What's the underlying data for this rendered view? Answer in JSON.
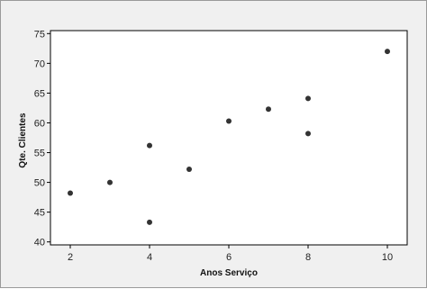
{
  "chart_data": {
    "type": "scatter",
    "xlabel": "Anos Serviço",
    "ylabel": "Qte. Clientes",
    "xlim": [
      1.5,
      10.5
    ],
    "ylim": [
      39.5,
      75.5
    ],
    "xticks": [
      2,
      4,
      6,
      8,
      10
    ],
    "yticks": [
      40,
      45,
      50,
      55,
      60,
      65,
      70,
      75
    ],
    "points": [
      {
        "x": 2,
        "y": 48.2
      },
      {
        "x": 3,
        "y": 50.0
      },
      {
        "x": 4,
        "y": 56.2
      },
      {
        "x": 4,
        "y": 43.3
      },
      {
        "x": 5,
        "y": 52.2
      },
      {
        "x": 6,
        "y": 60.3
      },
      {
        "x": 7,
        "y": 62.3
      },
      {
        "x": 8,
        "y": 64.1
      },
      {
        "x": 8,
        "y": 58.2
      },
      {
        "x": 10,
        "y": 72.0
      }
    ],
    "grid": false,
    "colors": {
      "background": "#f0f0f0",
      "plot": "#ffffff",
      "marker": "#333333"
    }
  }
}
